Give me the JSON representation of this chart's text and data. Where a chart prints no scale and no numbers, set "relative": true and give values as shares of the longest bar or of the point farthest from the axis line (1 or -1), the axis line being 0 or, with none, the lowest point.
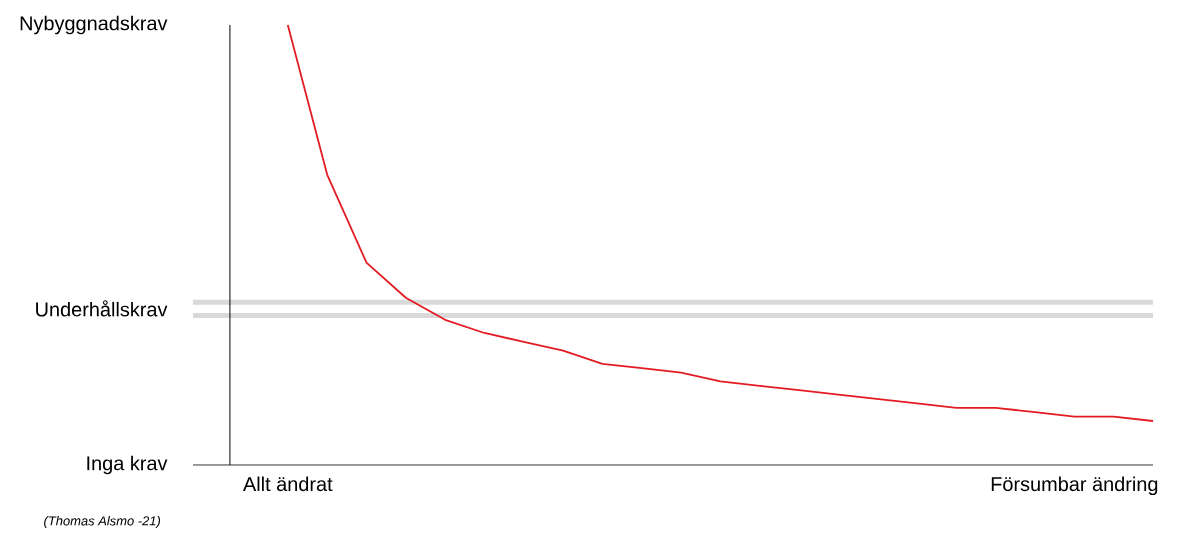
{
  "chart_data": {
    "type": "line",
    "relative": true,
    "categories": [
      "Allt ändrat",
      null,
      null,
      null,
      null,
      null,
      null,
      null,
      null,
      null,
      null,
      null,
      null,
      null,
      null,
      null,
      null,
      null,
      null,
      null,
      "Försumbar ändring",
      null,
      null
    ],
    "series": [
      {
        "color": "#e31b23",
        "values": [
          1.0,
          0.66,
          0.46,
          0.38,
          0.33,
          0.3,
          0.28,
          0.26,
          0.23,
          0.22,
          0.21,
          0.19,
          0.18,
          0.17,
          0.16,
          0.15,
          0.14,
          0.13,
          0.13,
          0.12,
          0.11,
          0.11,
          0.1
        ]
      }
    ],
    "ref_lines": [
      {
        "axis": "y",
        "value": 0.37,
        "color": "#d9d9d9"
      },
      {
        "axis": "y",
        "value": 0.34,
        "color": "#d9d9d9",
        "label": "Underhållskrav"
      }
    ],
    "annotations": [
      "Nybyggnadskrav",
      "Inga krav",
      "*(Thomas Alsmo -21)*"
    ],
    "grid": false,
    "line_style": "solid",
    "marker": "none"
  }
}
